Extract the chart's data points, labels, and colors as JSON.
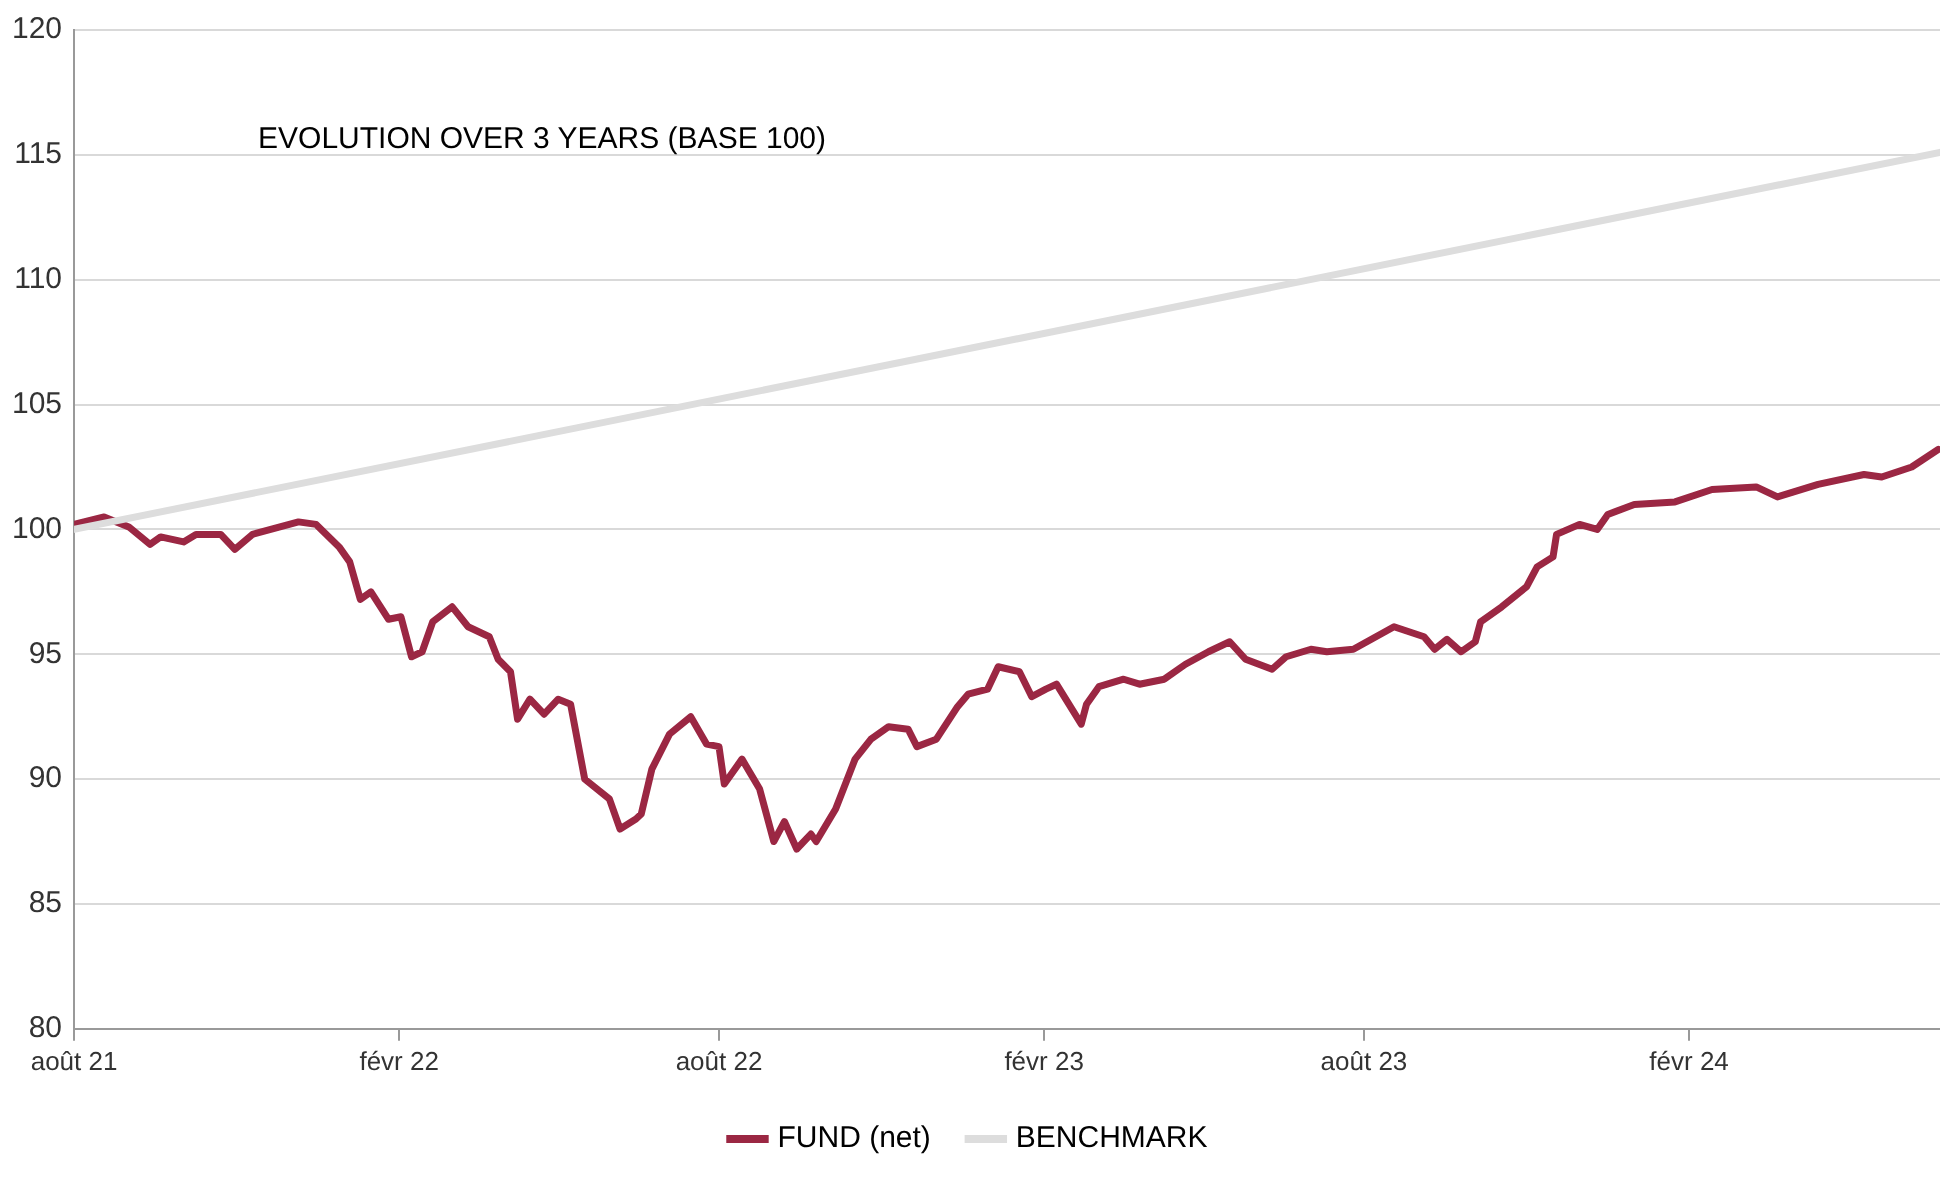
{
  "chart_data": {
    "type": "line",
    "title": "EVOLUTION OVER 3 YEARS (BASE 100)",
    "xlim": [
      "2021-08-01",
      "2024-06-22"
    ],
    "xticks": [
      {
        "value": "2021-08-01",
        "label": "août 21"
      },
      {
        "value": "2022-02-01",
        "label": "févr 22"
      },
      {
        "value": "2022-08-01",
        "label": "août 22"
      },
      {
        "value": "2023-02-01",
        "label": "févr 23"
      },
      {
        "value": "2023-08-01",
        "label": "août 23"
      },
      {
        "value": "2024-02-01",
        "label": "févr 24"
      }
    ],
    "ylim": [
      80,
      120
    ],
    "yticks": [
      80,
      85,
      90,
      95,
      100,
      105,
      110,
      115,
      120
    ],
    "grid": "y",
    "legend": "bottom",
    "marker": "none",
    "line_style": "solid",
    "series": [
      {
        "name": "FUND (net)",
        "color": "#9b2743",
        "x": [
          "2021-08-01",
          "2021-08-18",
          "2021-09-01",
          "2021-09-13",
          "2021-09-19",
          "2021-10-02",
          "2021-10-09",
          "2021-10-23",
          "2021-10-31",
          "2021-11-10",
          "2021-12-06",
          "2021-12-16",
          "2021-12-29",
          "2022-01-04",
          "2022-01-10",
          "2022-01-16",
          "2022-01-26",
          "2022-02-02",
          "2022-02-08",
          "2022-02-14",
          "2022-02-20",
          "2022-03-03",
          "2022-03-12",
          "2022-03-24",
          "2022-03-29",
          "2022-04-05",
          "2022-04-09",
          "2022-04-16",
          "2022-04-24",
          "2022-05-02",
          "2022-05-09",
          "2022-05-17",
          "2022-05-31",
          "2022-06-06",
          "2022-06-15",
          "2022-06-18",
          "2022-06-24",
          "2022-07-04",
          "2022-07-16",
          "2022-07-25",
          "2022-08-01",
          "2022-08-04",
          "2022-08-14",
          "2022-08-24",
          "2022-09-01",
          "2022-09-07",
          "2022-09-14",
          "2022-09-22",
          "2022-09-25",
          "2022-10-06",
          "2022-10-17",
          "2022-10-26",
          "2022-11-05",
          "2022-11-16",
          "2022-11-21",
          "2022-12-02",
          "2022-12-14",
          "2022-12-20",
          "2022-12-31",
          "2023-01-06",
          "2023-01-18",
          "2023-01-25",
          "2023-02-02",
          "2023-02-08",
          "2023-02-22",
          "2023-02-25",
          "2023-03-04",
          "2023-03-18",
          "2023-03-27",
          "2023-04-10",
          "2023-04-22",
          "2023-05-05",
          "2023-05-17",
          "2023-05-26",
          "2023-06-10",
          "2023-06-18",
          "2023-07-02",
          "2023-07-11",
          "2023-07-26",
          "2023-08-18",
          "2023-09-04",
          "2023-09-10",
          "2023-09-17",
          "2023-09-25",
          "2023-10-03",
          "2023-10-06",
          "2023-10-18",
          "2023-11-01",
          "2023-11-07",
          "2023-11-16",
          "2023-11-18",
          "2023-12-01",
          "2023-12-11",
          "2023-12-17",
          "2024-01-01",
          "2024-01-24",
          "2024-02-14",
          "2024-03-10",
          "2024-03-22",
          "2024-04-14",
          "2024-05-10",
          "2024-05-20",
          "2024-06-06",
          "2024-06-21"
        ],
        "values": [
          100.2,
          100.5,
          100.1,
          99.4,
          99.7,
          99.5,
          99.8,
          99.8,
          99.2,
          99.8,
          100.3,
          100.2,
          99.3,
          98.7,
          97.2,
          97.5,
          96.4,
          96.5,
          94.9,
          95.1,
          96.3,
          96.9,
          96.1,
          95.7,
          94.8,
          94.3,
          92.4,
          93.2,
          92.6,
          93.2,
          93.0,
          90.0,
          89.2,
          88.0,
          88.4,
          88.6,
          90.4,
          91.8,
          92.5,
          91.4,
          91.3,
          89.8,
          90.8,
          89.6,
          87.5,
          88.3,
          87.2,
          87.8,
          87.5,
          88.8,
          90.8,
          91.6,
          92.1,
          92.0,
          91.3,
          91.6,
          92.9,
          93.4,
          93.6,
          94.5,
          94.3,
          93.3,
          93.6,
          93.8,
          92.2,
          93.0,
          93.7,
          94.0,
          93.8,
          94.0,
          94.6,
          95.1,
          95.5,
          94.8,
          94.4,
          94.9,
          95.2,
          95.1,
          95.2,
          96.1,
          95.7,
          95.2,
          95.6,
          95.1,
          95.5,
          96.3,
          96.9,
          97.7,
          98.5,
          98.9,
          99.8,
          100.2,
          100.0,
          100.6,
          101.0,
          101.1,
          101.6,
          101.7,
          101.3,
          101.8,
          102.2,
          102.1,
          102.5,
          103.2
        ]
      },
      {
        "name": "BENCHMARK",
        "color": "#dddddd",
        "x": [
          "2021-08-01",
          "2024-06-22"
        ],
        "values": [
          100,
          115.1
        ]
      }
    ]
  }
}
